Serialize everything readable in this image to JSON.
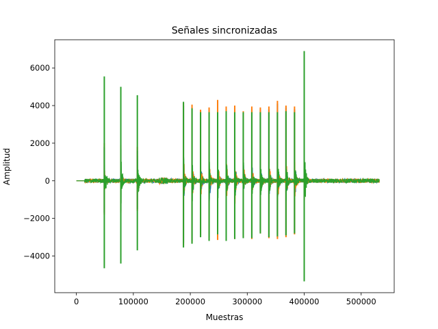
{
  "chart_data": {
    "type": "line",
    "title": "Señales sincronizadas",
    "xlabel": "Muestras",
    "ylabel": "Amplitud",
    "xlim": [
      -38000,
      558000
    ],
    "ylim": [
      -5950,
      7500
    ],
    "x_ticks": [
      0,
      100000,
      200000,
      300000,
      400000,
      500000
    ],
    "x_tick_labels": [
      "0",
      "100000",
      "200000",
      "300000",
      "400000",
      "500000"
    ],
    "y_ticks": [
      -4000,
      -2000,
      0,
      2000,
      4000,
      6000
    ],
    "y_tick_labels": [
      "−4000",
      "−2000",
      "0",
      "2000",
      "4000",
      "6000"
    ],
    "grid": false,
    "signal_range": [
      0,
      532000
    ],
    "series": [
      {
        "color": "#1f77b4",
        "peaks": [
          {
            "x": 49000,
            "max": 1800,
            "min": -1700
          },
          {
            "x": 78000,
            "max": 1700,
            "min": -1600
          },
          {
            "x": 107000,
            "max": 1600,
            "min": -1500
          },
          {
            "x": 188000,
            "max": 4000,
            "min": -3300
          },
          {
            "x": 203000,
            "max": 3900,
            "min": -3200
          },
          {
            "x": 218000,
            "max": 3700,
            "min": -2900
          },
          {
            "x": 233000,
            "max": 3800,
            "min": -3000
          },
          {
            "x": 248000,
            "max": 4200,
            "min": -3000
          },
          {
            "x": 263000,
            "max": 3800,
            "min": -3000
          },
          {
            "x": 278000,
            "max": 3900,
            "min": -3000
          },
          {
            "x": 293000,
            "max": 3600,
            "min": -2900
          },
          {
            "x": 308000,
            "max": 3800,
            "min": -3000
          },
          {
            "x": 323000,
            "max": 3800,
            "min": -2700
          },
          {
            "x": 338000,
            "max": 3800,
            "min": -3000
          },
          {
            "x": 353000,
            "max": 4100,
            "min": -3000
          },
          {
            "x": 368000,
            "max": 3900,
            "min": -2900
          },
          {
            "x": 383000,
            "max": 3800,
            "min": -2800
          },
          {
            "x": 400000,
            "max": 3000,
            "min": -2800
          }
        ]
      },
      {
        "color": "#ff7f0e",
        "peaks": [
          {
            "x": 49000,
            "max": 2000,
            "min": -1800
          },
          {
            "x": 78000,
            "max": 1900,
            "min": -1700
          },
          {
            "x": 107000,
            "max": 1800,
            "min": -1600
          },
          {
            "x": 188000,
            "max": 4150,
            "min": -3450
          },
          {
            "x": 203000,
            "max": 4050,
            "min": -3300
          },
          {
            "x": 218000,
            "max": 3780,
            "min": -2950
          },
          {
            "x": 233000,
            "max": 3900,
            "min": -3150
          },
          {
            "x": 248000,
            "max": 4300,
            "min": -3150
          },
          {
            "x": 263000,
            "max": 3950,
            "min": -3100
          },
          {
            "x": 278000,
            "max": 4000,
            "min": -3100
          },
          {
            "x": 293000,
            "max": 3700,
            "min": -3000
          },
          {
            "x": 308000,
            "max": 3950,
            "min": -3100
          },
          {
            "x": 323000,
            "max": 3900,
            "min": -2800
          },
          {
            "x": 338000,
            "max": 3950,
            "min": -3050
          },
          {
            "x": 353000,
            "max": 4250,
            "min": -3100
          },
          {
            "x": 368000,
            "max": 4000,
            "min": -3000
          },
          {
            "x": 383000,
            "max": 3950,
            "min": -2850
          },
          {
            "x": 400000,
            "max": 4150,
            "min": -3000
          }
        ]
      },
      {
        "color": "#2ca02c",
        "peaks": [
          {
            "x": 49000,
            "max": 5550,
            "min": -4650
          },
          {
            "x": 78000,
            "max": 5000,
            "min": -4400
          },
          {
            "x": 107000,
            "max": 4550,
            "min": -3700
          },
          {
            "x": 188000,
            "max": 4200,
            "min": -3550
          },
          {
            "x": 203000,
            "max": 3850,
            "min": -3350
          },
          {
            "x": 218000,
            "max": 3650,
            "min": -3000
          },
          {
            "x": 233000,
            "max": 3650,
            "min": -3200
          },
          {
            "x": 248000,
            "max": 3650,
            "min": -2850
          },
          {
            "x": 263000,
            "max": 3700,
            "min": -3200
          },
          {
            "x": 278000,
            "max": 3650,
            "min": -3100
          },
          {
            "x": 293000,
            "max": 3650,
            "min": -3050
          },
          {
            "x": 308000,
            "max": 3650,
            "min": -3050
          },
          {
            "x": 323000,
            "max": 3650,
            "min": -2800
          },
          {
            "x": 338000,
            "max": 3650,
            "min": -3000
          },
          {
            "x": 353000,
            "max": 3650,
            "min": -2950
          },
          {
            "x": 368000,
            "max": 3700,
            "min": -2900
          },
          {
            "x": 383000,
            "max": 3650,
            "min": -2800
          },
          {
            "x": 400000,
            "max": 6900,
            "min": -5350
          }
        ]
      }
    ]
  }
}
